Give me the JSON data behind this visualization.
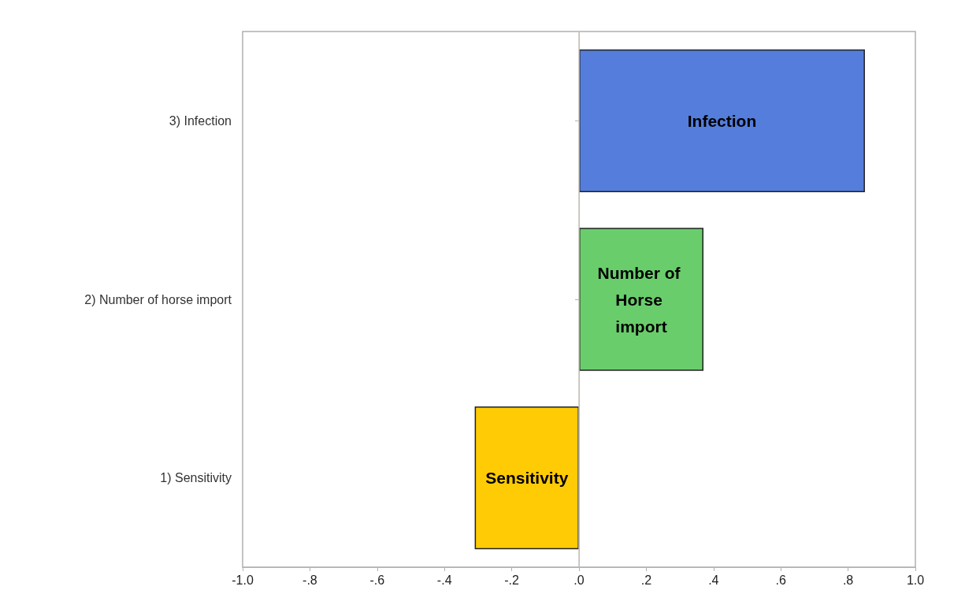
{
  "chart_data": {
    "type": "bar",
    "orientation": "horizontal",
    "categories": [
      "3) Infection",
      "2) Number of horse import",
      "1) Sensitivity"
    ],
    "values": [
      0.85,
      0.37,
      -0.31
    ],
    "colors": [
      "#557ddb",
      "#6acd6c",
      "#ffcb05"
    ],
    "xlim": [
      -1.0,
      1.0
    ],
    "xticks": [
      {
        "value": -1.0,
        "label": "-1.0"
      },
      {
        "value": -0.8,
        "label": "-.8"
      },
      {
        "value": -0.6,
        "label": "-.6"
      },
      {
        "value": -0.4,
        "label": "-.4"
      },
      {
        "value": -0.2,
        "label": "-.2"
      },
      {
        "value": 0,
        "label": ".0"
      },
      {
        "value": 0.2,
        "label": ".2"
      },
      {
        "value": 0.4,
        "label": ".4"
      },
      {
        "value": 0.6,
        "label": ".6"
      },
      {
        "value": 0.8,
        "label": ".8"
      },
      {
        "value": 1.0,
        "label": "1.0"
      }
    ],
    "ref_lines": [
      {
        "axis": "x",
        "value": 0,
        "color": "#c8c4bc"
      }
    ],
    "value_labels": [
      "Infection",
      "Number of Horse import",
      "Sensitivity"
    ],
    "grid": false
  }
}
